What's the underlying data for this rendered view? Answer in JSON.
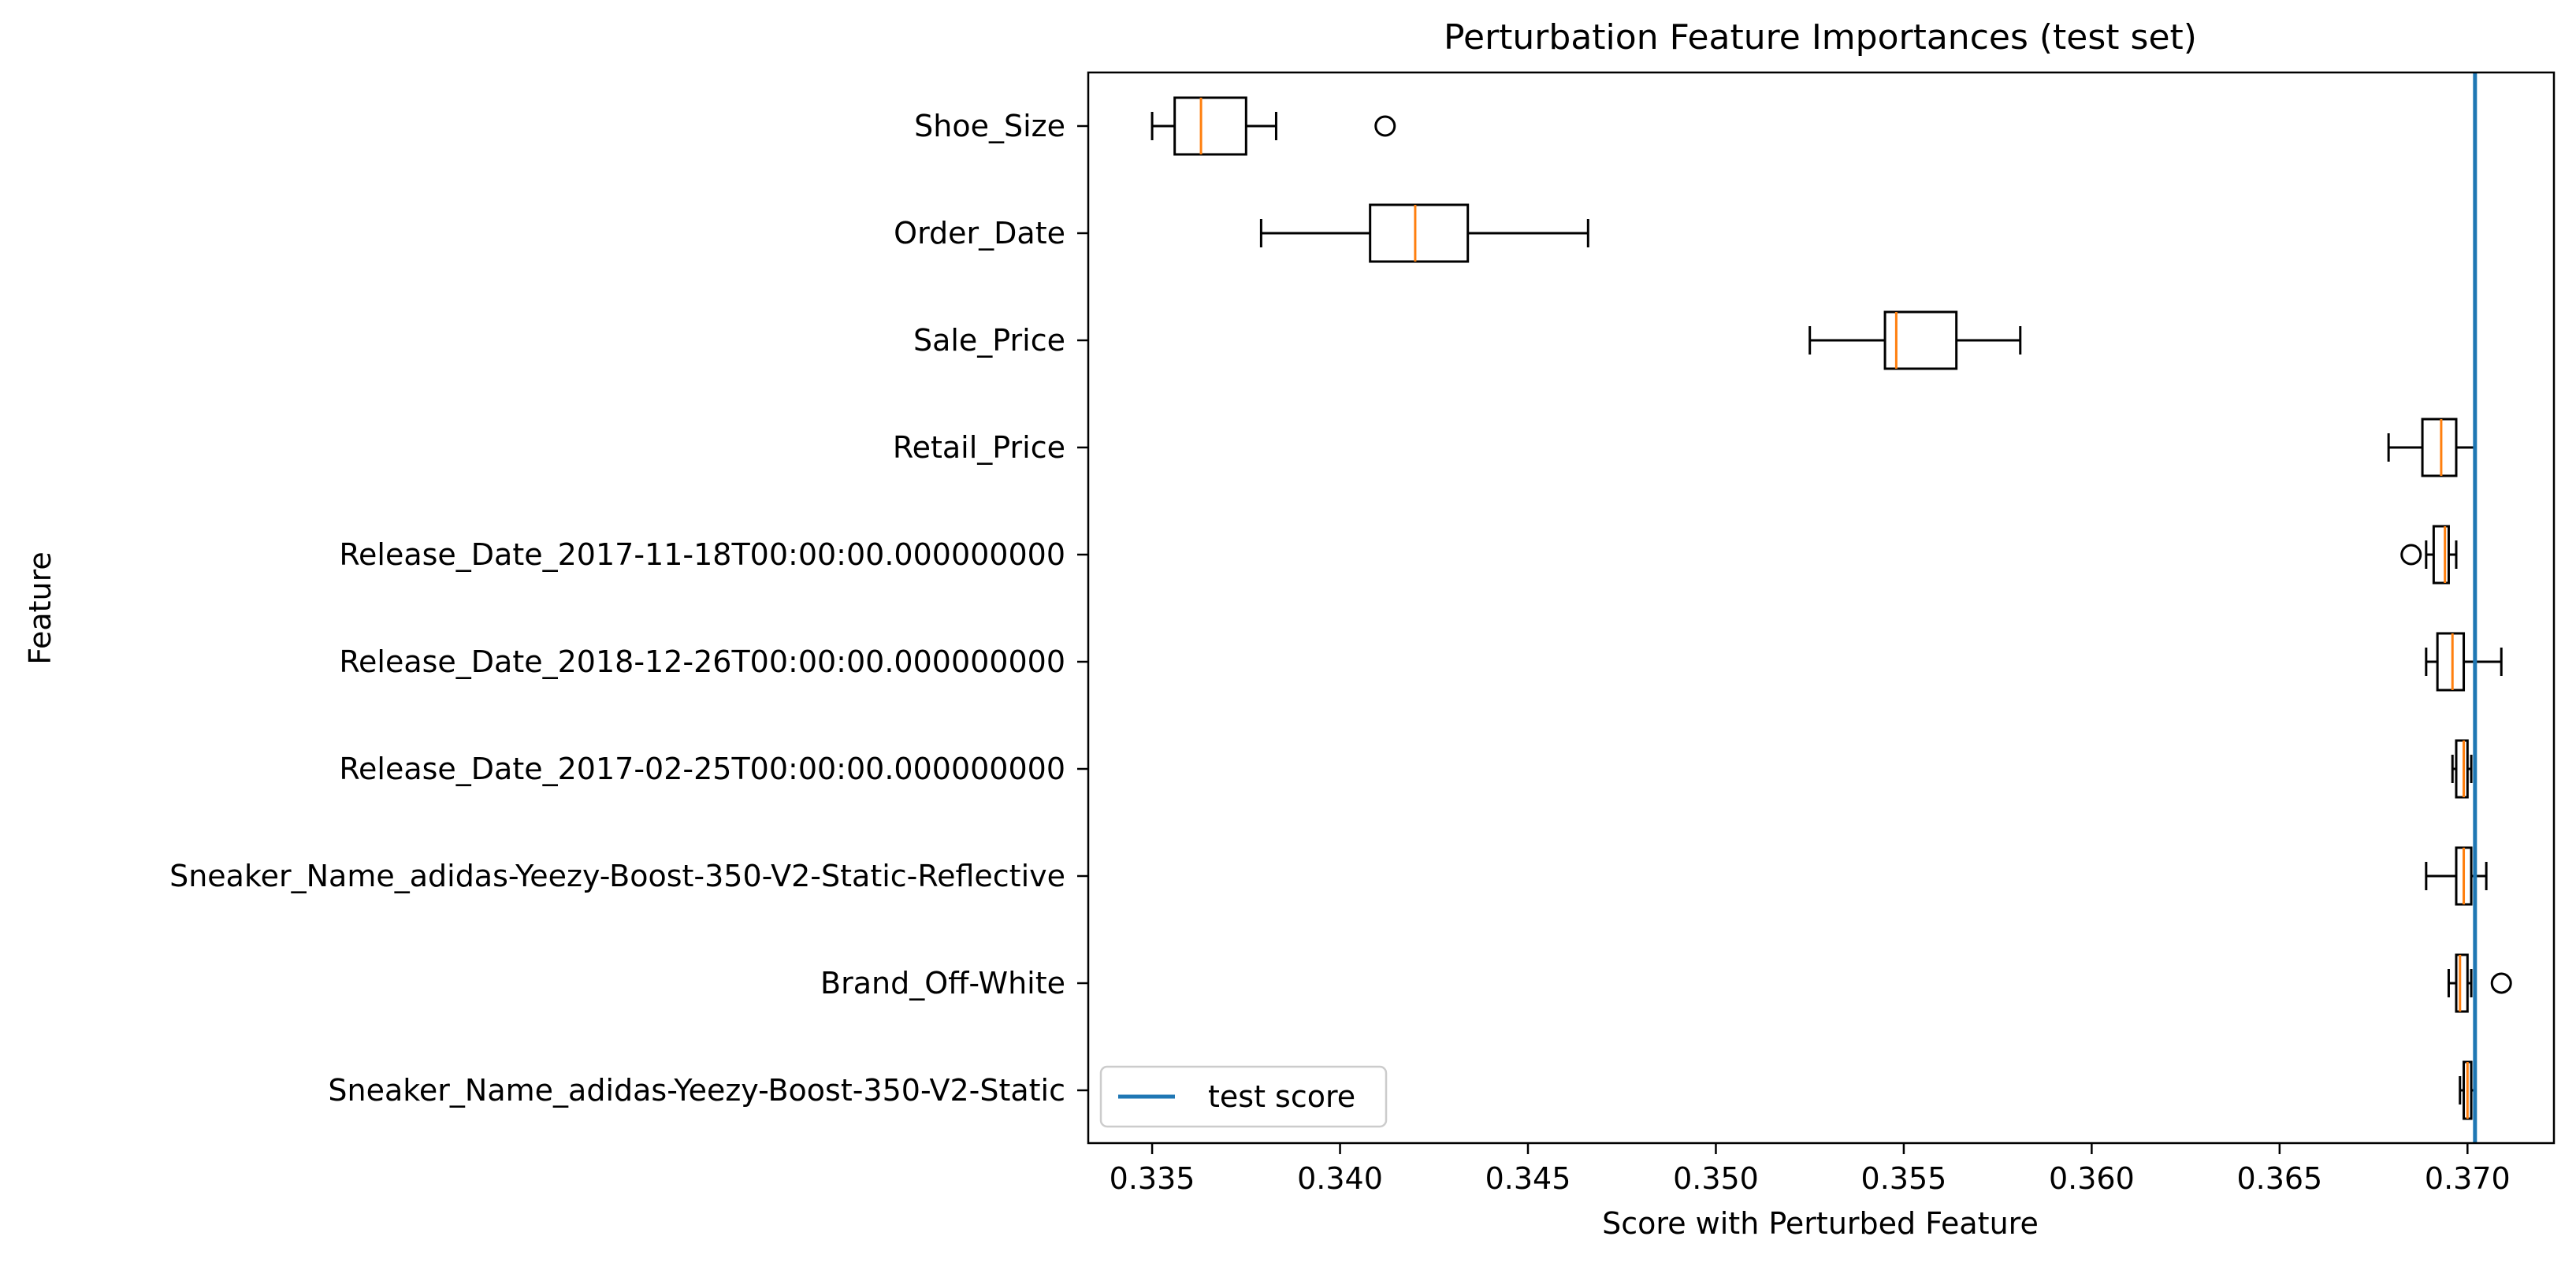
{
  "chart_data": {
    "type": "boxplot",
    "orientation": "horizontal",
    "title": "Perturbation Feature Importances (test set)",
    "xlabel": "Score with Perturbed Feature",
    "ylabel": "Feature",
    "xlim": [
      0.3333,
      0.3723
    ],
    "xticks": [
      0.335,
      0.34,
      0.345,
      0.35,
      0.355,
      0.36,
      0.365,
      0.37
    ],
    "xtick_labels": [
      "0.335",
      "0.340",
      "0.345",
      "0.350",
      "0.355",
      "0.360",
      "0.365",
      "0.370"
    ],
    "grid": false,
    "box_color": "#000000",
    "median_color": "#ff7f0e",
    "reference_line": {
      "label": "test score",
      "value": 0.3702,
      "color": "#1f77b4"
    },
    "legend": {
      "position": "lower-left",
      "entries": [
        "test score"
      ]
    },
    "categories": [
      "Shoe_Size",
      "Order_Date",
      "Sale_Price",
      "Retail_Price",
      "Release_Date_2017-11-18T00:00:00.000000000",
      "Release_Date_2018-12-26T00:00:00.000000000",
      "Release_Date_2017-02-25T00:00:00.000000000",
      "Sneaker_Name_adidas-Yeezy-Boost-350-V2-Static-Reflective",
      "Brand_Off-White",
      "Sneaker_Name_adidas-Yeezy-Boost-350-V2-Static"
    ],
    "boxes": [
      {
        "whisker_low": 0.335,
        "q1": 0.3356,
        "median": 0.3363,
        "q3": 0.3375,
        "whisker_high": 0.3383,
        "outliers": [
          0.3412
        ]
      },
      {
        "whisker_low": 0.3379,
        "q1": 0.3408,
        "median": 0.342,
        "q3": 0.3434,
        "whisker_high": 0.3466,
        "outliers": []
      },
      {
        "whisker_low": 0.3525,
        "q1": 0.3545,
        "median": 0.3548,
        "q3": 0.3564,
        "whisker_high": 0.3581,
        "outliers": []
      },
      {
        "whisker_low": 0.3679,
        "q1": 0.3688,
        "median": 0.3693,
        "q3": 0.3697,
        "whisker_high": 0.3702,
        "outliers": []
      },
      {
        "whisker_low": 0.3689,
        "q1": 0.3691,
        "median": 0.3694,
        "q3": 0.3695,
        "whisker_high": 0.3697,
        "outliers": [
          0.3685
        ]
      },
      {
        "whisker_low": 0.3689,
        "q1": 0.3692,
        "median": 0.3696,
        "q3": 0.3699,
        "whisker_high": 0.3709,
        "outliers": []
      },
      {
        "whisker_low": 0.3696,
        "q1": 0.3697,
        "median": 0.3699,
        "q3": 0.37,
        "whisker_high": 0.3701,
        "outliers": []
      },
      {
        "whisker_low": 0.3689,
        "q1": 0.3697,
        "median": 0.3699,
        "q3": 0.3701,
        "whisker_high": 0.3705,
        "outliers": []
      },
      {
        "whisker_low": 0.3695,
        "q1": 0.3697,
        "median": 0.3698,
        "q3": 0.37,
        "whisker_high": 0.3701,
        "outliers": [
          0.3709
        ]
      },
      {
        "whisker_low": 0.3698,
        "q1": 0.3699,
        "median": 0.37,
        "q3": 0.3701,
        "whisker_high": 0.3702,
        "outliers": []
      }
    ]
  }
}
